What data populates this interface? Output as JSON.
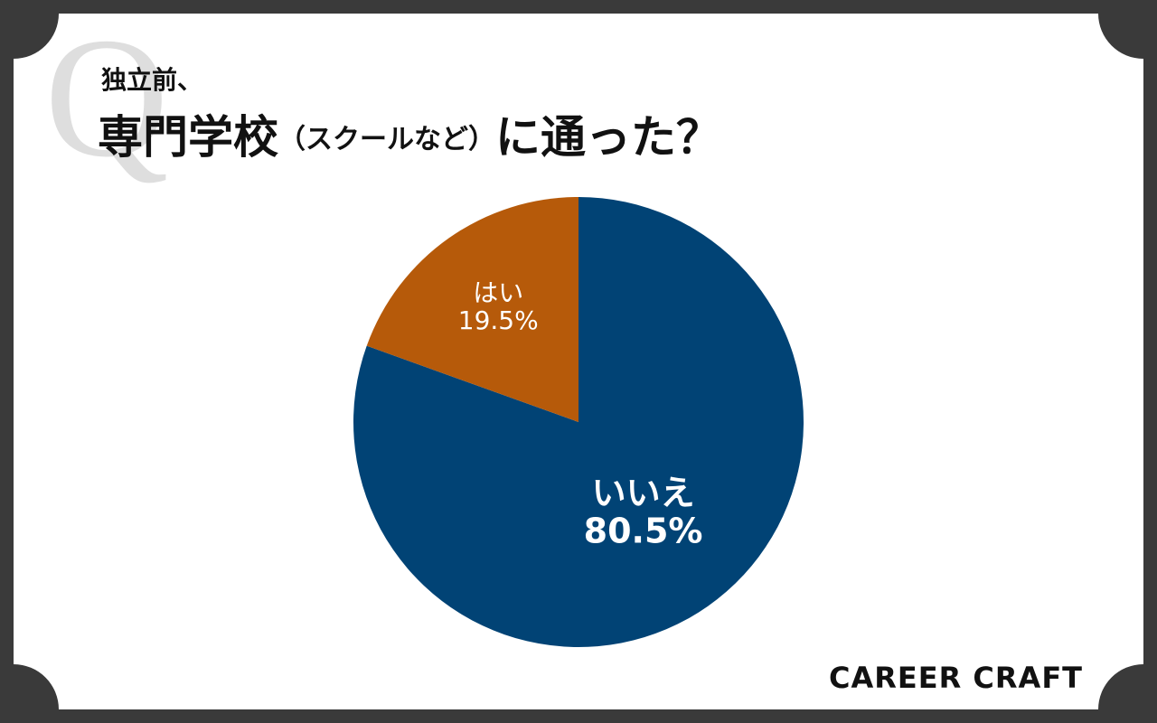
{
  "chart_data": {
    "type": "pie",
    "mark": "Q",
    "title_prefix": "独立前、",
    "title": [
      "専門学校",
      "（スクールなど）",
      "に通った？"
    ],
    "categories": [
      "いいえ",
      "はい"
    ],
    "values": [
      80.5,
      19.5
    ],
    "value_labels": [
      "80.5%",
      "19.5%"
    ],
    "colors": [
      "#014375",
      "#b65a0a"
    ],
    "brand": "CAREER CRAFT"
  }
}
